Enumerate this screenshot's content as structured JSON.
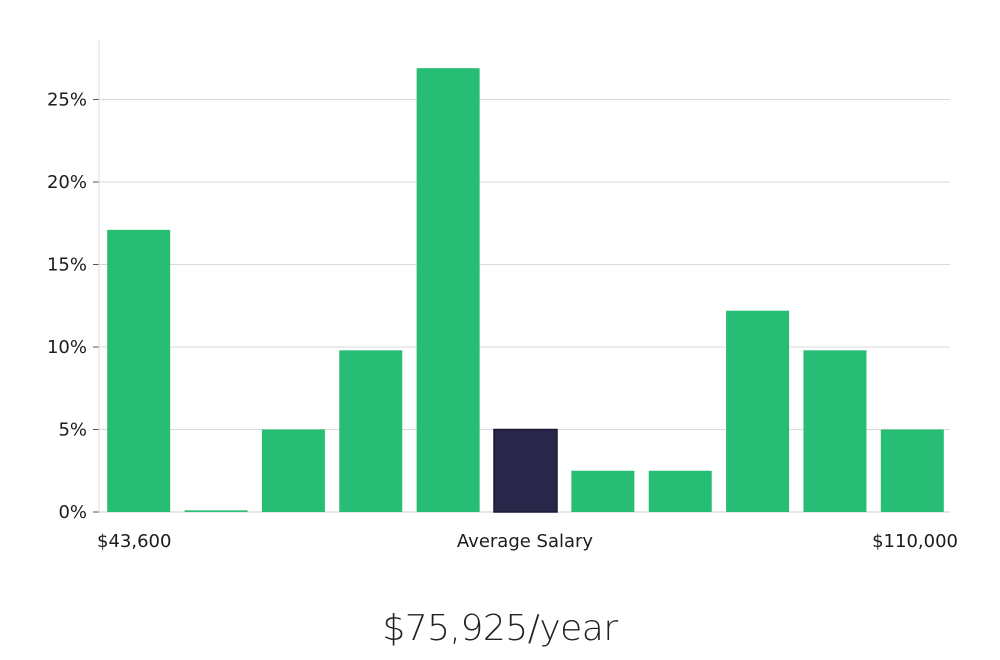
{
  "chart_data": {
    "type": "bar",
    "categories": [
      "1",
      "2",
      "3",
      "4",
      "5",
      "6",
      "7",
      "8",
      "9",
      "10",
      "11"
    ],
    "values": [
      17.1,
      0.1,
      5.0,
      9.8,
      26.9,
      5.0,
      2.5,
      2.5,
      12.2,
      9.8,
      5.0
    ],
    "highlight_index": 5,
    "ylim": [
      0,
      28
    ],
    "yticks": [
      0,
      5,
      10,
      15,
      20,
      25
    ],
    "ytick_format": "%",
    "x_min_label": "$43,600",
    "x_max_label": "$110,000",
    "xlabel": "Average Salary",
    "grid": true,
    "colors": {
      "bar": "#27bd74",
      "highlight": "#29264a",
      "highlight_edge": "#1a1838",
      "grid": "#d9d9d9"
    }
  },
  "summary": {
    "salary_text": "$75,925/year"
  }
}
